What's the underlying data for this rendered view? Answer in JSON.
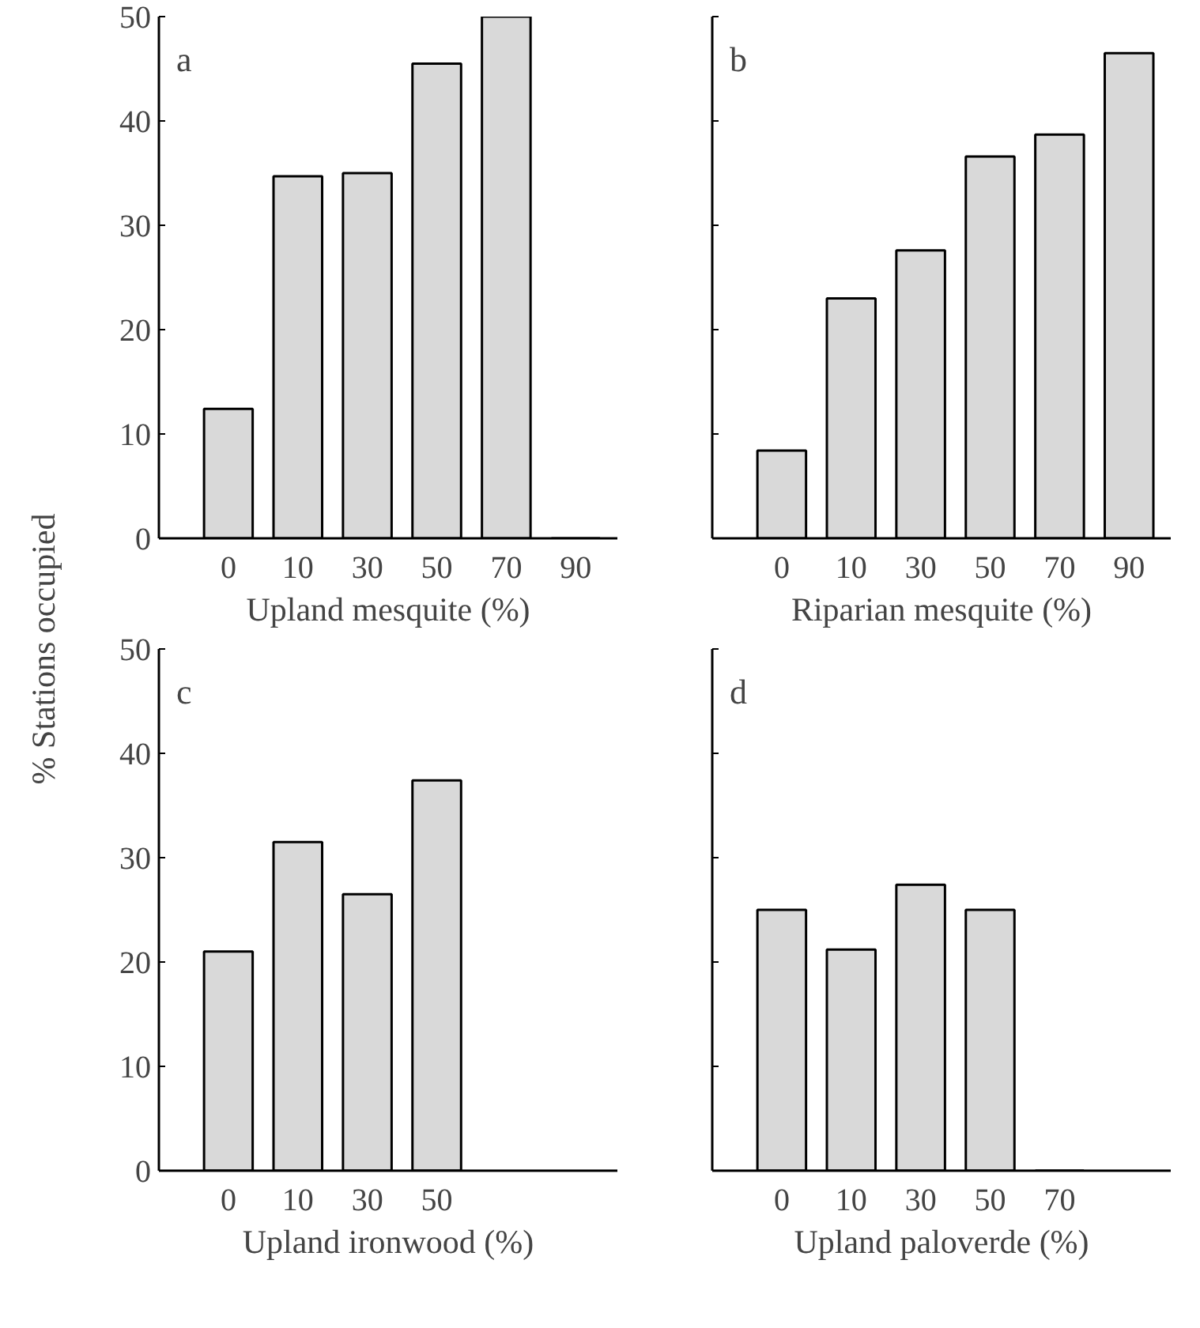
{
  "chart_data": [
    {
      "type": "bar",
      "ylabel": "% Stations occupied",
      "xlabel": "Upland mesquite (%)",
      "categories": [
        "0",
        "10",
        "30",
        "50",
        "70",
        "90"
      ],
      "values": [
        12.4,
        34.7,
        35.0,
        45.5,
        50.0,
        0
      ],
      "color": "#d9d9d9",
      "ylim": [
        0,
        50
      ],
      "yticks": [
        0,
        10,
        20,
        30,
        40,
        50
      ],
      "grid": false,
      "annotations": [
        "a"
      ]
    },
    {
      "type": "bar",
      "xlabel": "Riparian mesquite (%)",
      "categories": [
        "0",
        "10",
        "30",
        "50",
        "70",
        "90"
      ],
      "values": [
        8.4,
        23.0,
        27.6,
        36.6,
        38.7,
        46.5
      ],
      "color": "#d9d9d9",
      "ylim": [
        0,
        50
      ],
      "yticks": [
        0,
        10,
        20,
        30,
        40,
        50
      ],
      "tick_labels": "x",
      "grid": false,
      "annotations": [
        "b"
      ]
    },
    {
      "type": "bar",
      "xlabel": "Upland ironwood (%)",
      "categories": [
        "0",
        "10",
        "30",
        "50"
      ],
      "values": [
        21.0,
        31.5,
        26.5,
        37.4
      ],
      "color": "#d9d9d9",
      "ylim": [
        0,
        50
      ],
      "yticks": [
        0,
        10,
        20,
        30,
        40,
        50
      ],
      "grid": false,
      "annotations": [
        "c"
      ]
    },
    {
      "type": "bar",
      "xlabel": "Upland paloverde (%)",
      "categories": [
        "0",
        "10",
        "30",
        "50",
        "70"
      ],
      "values": [
        25.0,
        21.2,
        27.4,
        25.0,
        0
      ],
      "color": "#d9d9d9",
      "ylim": [
        0,
        50
      ],
      "yticks": [
        0,
        10,
        20,
        30,
        40,
        50
      ],
      "tick_labels": "x",
      "grid": false,
      "annotations": [
        "d"
      ]
    }
  ]
}
